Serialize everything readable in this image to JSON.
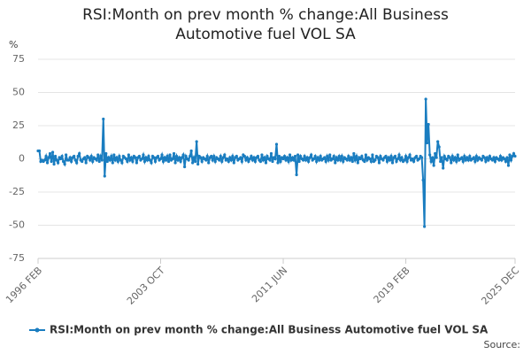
{
  "chart_data": {
    "type": "line",
    "title": "RSI:Month on prev month % change:All Business Automotive fuel VOL SA",
    "y_label": "%",
    "source": "Source:",
    "categories": [
      "1996 FEB",
      null,
      null,
      null,
      null,
      null,
      null,
      null,
      null,
      null,
      null,
      null,
      null,
      null,
      null,
      null,
      null,
      null,
      null,
      null,
      null,
      null,
      null,
      null,
      null,
      null,
      null,
      null,
      null,
      null,
      null,
      null,
      null,
      null,
      null,
      null,
      null,
      null,
      null,
      null,
      null,
      null,
      null,
      null,
      null,
      null,
      null,
      null,
      null,
      null,
      null,
      null,
      null,
      null,
      null,
      null,
      null,
      null,
      null,
      null,
      null,
      null,
      null,
      null,
      null,
      null,
      null,
      null,
      null,
      null,
      null,
      null,
      null,
      null,
      null,
      null,
      null,
      null,
      null,
      null,
      null,
      null,
      null,
      null,
      null,
      null,
      null,
      null,
      null,
      null,
      null,
      null,
      "2003 OCT",
      null,
      null,
      null,
      null,
      null,
      null,
      null,
      null,
      null,
      null,
      null,
      null,
      null,
      null,
      null,
      null,
      null,
      null,
      null,
      null,
      null,
      null,
      null,
      null,
      null,
      null,
      null,
      null,
      null,
      null,
      null,
      null,
      null,
      null,
      null,
      null,
      null,
      null,
      null,
      null,
      null,
      null,
      null,
      null,
      null,
      null,
      null,
      null,
      null,
      null,
      null,
      null,
      null,
      null,
      null,
      null,
      null,
      null,
      null,
      null,
      null,
      null,
      null,
      null,
      null,
      null,
      null,
      null,
      null,
      null,
      null,
      null,
      null,
      null,
      null,
      null,
      null,
      null,
      null,
      null,
      null,
      null,
      null,
      null,
      null,
      null,
      null,
      null,
      null,
      null,
      null,
      "2011 JUN",
      null,
      null,
      null,
      null,
      null,
      null,
      null,
      null,
      null,
      null,
      null,
      null,
      null,
      null,
      null,
      null,
      null,
      null,
      null,
      null,
      null,
      null,
      null,
      null,
      null,
      null,
      null,
      null,
      null,
      null,
      null,
      null,
      null,
      null,
      null,
      null,
      null,
      null,
      null,
      null,
      null,
      null,
      null,
      null,
      null,
      null,
      null,
      null,
      null,
      null,
      null,
      null,
      null,
      null,
      null,
      null,
      null,
      null,
      null,
      null,
      null,
      null,
      null,
      null,
      null,
      null,
      null,
      null,
      null,
      null,
      null,
      null,
      null,
      null,
      null,
      null,
      null,
      null,
      null,
      null,
      null,
      null,
      null,
      null,
      null,
      null,
      null,
      null,
      null,
      null,
      null,
      "2019 FEB",
      null,
      null,
      null,
      null,
      null,
      null,
      null,
      null,
      null,
      null,
      null,
      null,
      null,
      null,
      null,
      null,
      null,
      null,
      null,
      null,
      null,
      null,
      null,
      null,
      null,
      null,
      null,
      null,
      null,
      null,
      null,
      null,
      null,
      null,
      null,
      null,
      null,
      null,
      null,
      null,
      null,
      null,
      null,
      null,
      null,
      null,
      null,
      null,
      null,
      null,
      null,
      null,
      null,
      null,
      null,
      null,
      null,
      null,
      null,
      null,
      null,
      null,
      null,
      null,
      null,
      null,
      null,
      null,
      null,
      null,
      null,
      null,
      null,
      null,
      null,
      null,
      null,
      null,
      null,
      null,
      null,
      "2025 DEC"
    ],
    "series": [
      {
        "name": "RSI:Month on prev month % change:All Business Automotive fuel VOL SA",
        "color": "#1a7dc0",
        "values": [
          6,
          6,
          -2,
          -1,
          -2,
          -1,
          2,
          -3,
          1,
          4,
          -2,
          5,
          -4,
          2,
          -1,
          -3,
          1,
          0,
          2,
          -2,
          -4,
          3,
          -1,
          -1,
          1,
          -2,
          1,
          2,
          -1,
          -3,
          2,
          4,
          -1,
          -2,
          0,
          1,
          -3,
          2,
          1,
          -1,
          2,
          -2,
          1,
          0,
          -1,
          3,
          -2,
          2,
          -1,
          30,
          -13,
          4,
          -2,
          1,
          -1,
          2,
          -3,
          3,
          -1,
          1,
          -2,
          2,
          -1,
          -3,
          2,
          1,
          0,
          -2,
          3,
          -1,
          1,
          -2,
          2,
          1,
          -3,
          1,
          2,
          -1,
          0,
          3,
          -2,
          1,
          -1,
          2,
          -1,
          -3,
          2,
          1,
          -2,
          1,
          2,
          -1,
          0,
          3,
          -2,
          1,
          -1,
          2,
          -2,
          3,
          -1,
          0,
          4,
          -3,
          2,
          -1,
          1,
          -2,
          1,
          3,
          -6,
          2,
          0,
          -1,
          2,
          6,
          -3,
          1,
          -2,
          13,
          -4,
          2,
          1,
          -2,
          1,
          0,
          -1,
          2,
          -3,
          1,
          2,
          -1,
          2,
          -2,
          1,
          0,
          -1,
          2,
          -2,
          1,
          3,
          -1,
          0,
          -2,
          1,
          -1,
          2,
          -3,
          1,
          2,
          -1,
          0,
          1,
          -2,
          3,
          2,
          -1,
          1,
          -2,
          0,
          2,
          -1,
          1,
          -2,
          1,
          2,
          -1,
          -2,
          3,
          -1,
          1,
          -3,
          2,
          0,
          -1,
          4,
          -2,
          1,
          0,
          11,
          -3,
          2,
          -2,
          1,
          0,
          2,
          -1,
          1,
          -2,
          3,
          -1,
          1,
          -1,
          2,
          -12,
          3,
          -2,
          2,
          0,
          -1,
          2,
          -1,
          1,
          -2,
          1,
          3,
          -1,
          0,
          2,
          -2,
          1,
          -1,
          2,
          -1,
          0,
          1,
          -2,
          2,
          -1,
          3,
          -1,
          0,
          2,
          -3,
          1,
          -1,
          2,
          -1,
          2,
          -2,
          1,
          0,
          -1,
          2,
          -1,
          1,
          -2,
          4,
          -1,
          2,
          -3,
          1,
          0,
          2,
          -1,
          -2,
          3,
          -1,
          1,
          0,
          -2,
          3,
          -2,
          -1,
          2,
          1,
          -3,
          2,
          0,
          -1,
          1,
          2,
          -2,
          1,
          -1,
          2,
          -3,
          1,
          2,
          -2,
          0,
          3,
          -1,
          1,
          -2,
          -1,
          2,
          -2,
          1,
          3,
          -1,
          0,
          -2,
          1,
          2,
          -1,
          0,
          2,
          1,
          -16,
          -51,
          45,
          12,
          26,
          3,
          -2,
          1,
          -5,
          4,
          1,
          13,
          9,
          -2,
          1,
          -7,
          2,
          0,
          -1,
          2,
          1,
          -3,
          2,
          -1,
          1,
          -2,
          3,
          -1,
          0,
          1,
          -2,
          2,
          -1,
          1,
          -1,
          2,
          -1,
          0,
          1,
          -2,
          2,
          -1,
          1,
          0,
          -1,
          2,
          1,
          -2,
          1,
          -1,
          2,
          0,
          -1,
          1,
          -2,
          1,
          0,
          -1,
          2,
          -1,
          1,
          0,
          -2,
          1,
          -5,
          3,
          -1,
          2,
          4,
          2
        ]
      }
    ],
    "ylim": [
      -75,
      75
    ],
    "yticks": [
      -75,
      -50,
      -25,
      0,
      25,
      50,
      75
    ],
    "grid": true
  }
}
